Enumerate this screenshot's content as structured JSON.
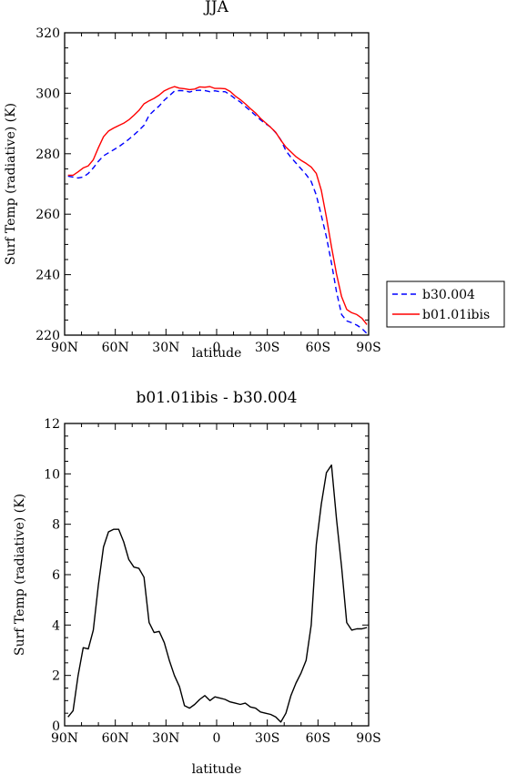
{
  "chart_data": [
    {
      "type": "line",
      "title": "JJA",
      "xlabel": "latitude",
      "ylabel": "Surf Temp (radiative) (K)",
      "xlim": [
        90,
        -90
      ],
      "ylim": [
        220,
        320
      ],
      "xticks": [
        90,
        60,
        30,
        0,
        -30,
        -60,
        -90
      ],
      "xtick_labels": [
        "90N",
        "60N",
        "30N",
        "0",
        "30S",
        "60S",
        "90S"
      ],
      "yticks": [
        220,
        240,
        260,
        280,
        300,
        320
      ],
      "ytick_labels": [
        "220",
        "240",
        "260",
        "280",
        "300",
        "320"
      ],
      "grid": false,
      "legend": "outside-right",
      "series": [
        {
          "name": "b30.004",
          "color": "#0000ff",
          "dash": "dashed",
          "x": [
            88,
            85,
            82,
            79,
            76,
            73,
            70,
            67,
            64,
            61,
            58,
            55,
            52,
            49,
            46,
            43,
            40,
            37,
            34,
            31,
            28,
            25,
            22,
            19,
            16,
            13,
            10,
            7,
            4,
            1,
            -2,
            -5,
            -8,
            -11,
            -14,
            -17,
            -20,
            -23,
            -26,
            -29,
            -32,
            -35,
            -38,
            -41,
            -44,
            -47,
            -50,
            -53,
            -56,
            -59,
            -62,
            -65,
            -68,
            -71,
            -74,
            -77,
            -80,
            -83,
            -86,
            -89
          ],
          "y": [
            272.6,
            272.3,
            272.0,
            272.3,
            273.5,
            275.3,
            277.5,
            279.3,
            280.3,
            281.3,
            282.3,
            283.5,
            284.8,
            286.2,
            287.7,
            289.4,
            292.7,
            294.3,
            295.8,
            297.7,
            299.2,
            300.7,
            300.9,
            300.8,
            300.4,
            300.9,
            301.0,
            300.9,
            300.5,
            300.8,
            300.5,
            300.5,
            299.5,
            298.2,
            297.1,
            295.6,
            294.2,
            292.7,
            291.2,
            289.9,
            288.8,
            287.0,
            284.6,
            281.0,
            278.8,
            276.9,
            275.0,
            273.1,
            270.8,
            266.3,
            259.6,
            252.5,
            243.8,
            234.3,
            226.8,
            224.7,
            224.1,
            223.3,
            222.2,
            220.5
          ]
        },
        {
          "name": "b01.01ibis",
          "color": "#ff0000",
          "dash": "solid",
          "x": [
            88,
            85,
            82,
            79,
            76,
            73,
            70,
            67,
            64,
            61,
            58,
            55,
            52,
            49,
            46,
            43,
            40,
            37,
            34,
            31,
            28,
            25,
            22,
            19,
            16,
            13,
            10,
            7,
            4,
            1,
            -2,
            -5,
            -8,
            -11,
            -14,
            -17,
            -20,
            -23,
            -26,
            -29,
            -32,
            -35,
            -38,
            -41,
            -44,
            -47,
            -50,
            -53,
            -56,
            -59,
            -62,
            -65,
            -68,
            -71,
            -74,
            -77,
            -80,
            -83,
            -86,
            -89
          ],
          "y": [
            272.9,
            272.9,
            274.0,
            275.3,
            276.0,
            278.0,
            282.0,
            285.6,
            287.5,
            288.5,
            289.3,
            290.1,
            291.2,
            292.7,
            294.3,
            296.5,
            297.5,
            298.3,
            299.4,
            300.8,
            301.6,
            302.2,
            301.7,
            301.5,
            301.2,
            301.4,
            302.1,
            302.0,
            302.2,
            301.6,
            301.6,
            301.5,
            300.6,
            299.1,
            297.9,
            296.5,
            294.9,
            293.5,
            291.7,
            290.2,
            288.7,
            287.1,
            284.5,
            282.2,
            280.6,
            279.0,
            277.8,
            276.8,
            275.6,
            273.5,
            267.9,
            259.0,
            249.2,
            240.2,
            232.7,
            228.5,
            227.4,
            226.8,
            225.6,
            223.5
          ]
        }
      ]
    },
    {
      "type": "line",
      "title": "b01.01ibis - b30.004",
      "xlabel": "latitude",
      "ylabel": "Surf Temp (radiative) (K)",
      "xlim": [
        90,
        -90
      ],
      "ylim": [
        0,
        12
      ],
      "xticks": [
        90,
        60,
        30,
        0,
        -30,
        -60,
        -90
      ],
      "xtick_labels": [
        "90N",
        "60N",
        "30N",
        "0",
        "30S",
        "60S",
        "90S"
      ],
      "yticks": [
        0,
        2,
        4,
        6,
        8,
        10,
        12
      ],
      "ytick_labels": [
        "0",
        "2",
        "4",
        "6",
        "8",
        "10",
        "12"
      ],
      "grid": false,
      "series": [
        {
          "color": "#000000",
          "dash": "solid",
          "x": [
            88,
            85,
            82,
            79,
            76,
            73,
            70,
            67,
            64,
            61,
            58,
            55,
            52,
            49,
            46,
            43,
            40,
            37,
            34,
            31,
            28,
            25,
            22,
            19,
            16,
            13,
            10,
            7,
            4,
            1,
            -2,
            -5,
            -8,
            -11,
            -14,
            -17,
            -20,
            -23,
            -26,
            -29,
            -32,
            -35,
            -38,
            -41,
            -44,
            -47,
            -50,
            -53,
            -56,
            -59,
            -62,
            -65,
            -68,
            -71,
            -74,
            -77,
            -80,
            -83,
            -86,
            -89
          ],
          "y": [
            0.35,
            0.6,
            2.0,
            3.1,
            3.05,
            3.8,
            5.6,
            7.1,
            7.7,
            7.8,
            7.8,
            7.3,
            6.6,
            6.3,
            6.25,
            5.9,
            4.1,
            3.7,
            3.75,
            3.3,
            2.6,
            2.0,
            1.55,
            0.8,
            0.7,
            0.85,
            1.05,
            1.2,
            1.0,
            1.15,
            1.1,
            1.05,
            0.95,
            0.9,
            0.85,
            0.9,
            0.75,
            0.7,
            0.55,
            0.5,
            0.45,
            0.35,
            0.15,
            0.5,
            1.2,
            1.7,
            2.1,
            2.6,
            4.0,
            7.2,
            8.8,
            10.05,
            10.35,
            8.2,
            6.3,
            4.1,
            3.8,
            3.85,
            3.85,
            3.9
          ]
        }
      ]
    }
  ]
}
